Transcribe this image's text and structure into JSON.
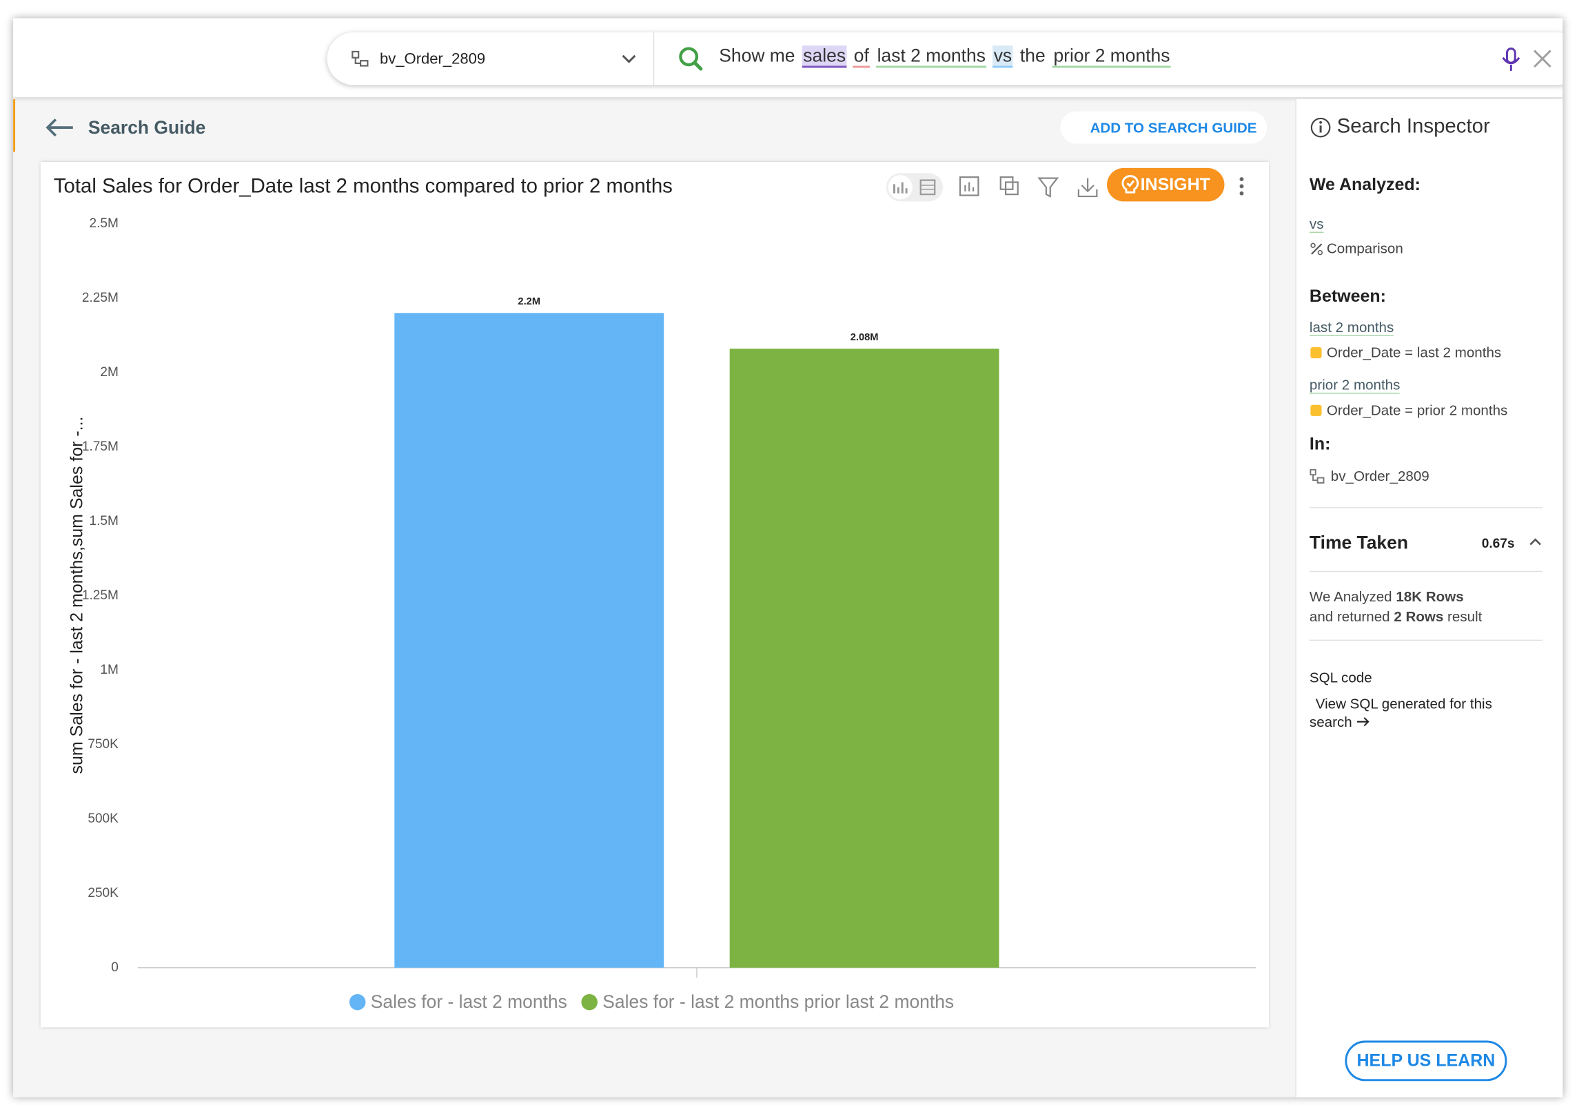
{
  "search_bar": {
    "datasource": "bv_Order_2809",
    "query_tokens": [
      "Show me",
      "sales",
      "of",
      "last 2 months",
      "vs",
      "the",
      "prior 2 months"
    ]
  },
  "header": {
    "back_label": "Search Guide",
    "add_button": "ADD TO SEARCH GUIDE"
  },
  "toolbar": {
    "insight_button": "INSIGHT"
  },
  "chart_data": {
    "type": "bar",
    "title": "Total Sales for Order_Date last 2 months compared to prior 2 months",
    "y_label": "sum Sales for - last 2 months,sum Sales for -...",
    "categories": [
      null
    ],
    "series": [
      {
        "name": "Sales for - last 2 months",
        "color": "#64b5f6",
        "values": [
          2200000
        ],
        "value_labels": [
          "2.2M"
        ]
      },
      {
        "name": "Sales for - last 2 months prior last 2 months",
        "color": "#7cb342",
        "values": [
          2080000
        ],
        "value_labels": [
          "2.08M"
        ]
      }
    ],
    "ylim": [
      0,
      2500000
    ],
    "yticks": [
      0,
      {
        "value": 250000,
        "label": "250K"
      },
      {
        "value": 500000,
        "label": "500K"
      },
      {
        "value": 750000,
        "label": "750K"
      },
      {
        "value": 1000000,
        "label": "1M"
      },
      {
        "value": 1250000,
        "label": "1.25M"
      },
      {
        "value": 1500000,
        "label": "1.5M"
      },
      {
        "value": 1750000,
        "label": "1.75M"
      },
      {
        "value": 2000000,
        "label": "2M"
      },
      {
        "value": 2250000,
        "label": "2.25M"
      },
      {
        "value": 2500000,
        "label": "2.5M"
      }
    ],
    "grid": false,
    "legend": "bottom"
  },
  "inspector": {
    "title": "Search Inspector",
    "analyzed_heading": "We Analyzed:",
    "analyzed_keyword": "vs",
    "analyzed_type": "Comparison",
    "between_heading": "Between:",
    "between": [
      {
        "keyword": "last 2 months",
        "detail": "Order_Date = last 2 months"
      },
      {
        "keyword": "prior 2 months",
        "detail": "Order_Date = prior 2 months"
      }
    ],
    "in_heading": "In:",
    "in_source": "bv_Order_2809",
    "time_taken_label": "Time Taken",
    "time_taken": "0.67s",
    "rows_prefix": "We Analyzed",
    "rows_analyzed": "18K Rows",
    "rows_mid": "and returned",
    "rows_returned": "2 Rows",
    "rows_suffix": "result",
    "sql_heading": "SQL code",
    "sql_link": "View SQL generated for this search",
    "help_button": "HELP US LEARN"
  }
}
